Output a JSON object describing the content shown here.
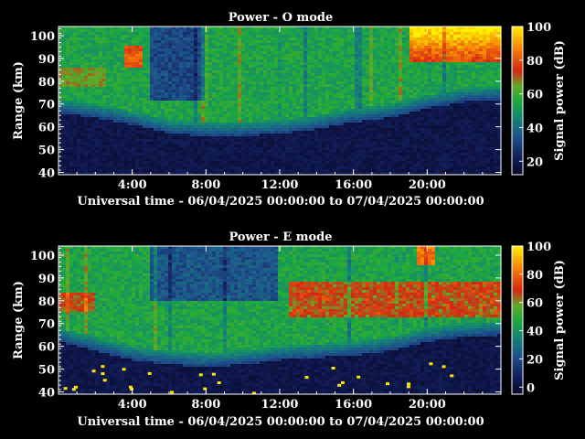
{
  "chart_data": [
    {
      "type": "heatmap",
      "title": "Power - O mode",
      "xlabel": "Universal time - 06/04/2025 00:00:00 to 07/04/2025 00:00:00",
      "ylabel": "Range (km)",
      "xlim": [
        0,
        24
      ],
      "x_tick_labels": [
        "4:00",
        "8:00",
        "12:00",
        "16:00",
        "20:00"
      ],
      "x_ticks": [
        4,
        8,
        12,
        16,
        20
      ],
      "ylim": [
        39,
        104
      ],
      "y_ticks": [
        40,
        50,
        60,
        70,
        80,
        90,
        100
      ],
      "colorbar": {
        "label": "Signal power (dB)",
        "range": [
          12,
          100
        ],
        "ticks": [
          20,
          40,
          60,
          80,
          100
        ]
      },
      "features": {
        "echo_lower_boundary_km": [
          [
            0,
            70
          ],
          [
            2,
            68
          ],
          [
            4,
            65
          ],
          [
            6,
            61
          ],
          [
            8,
            60
          ],
          [
            10,
            60
          ],
          [
            12,
            61
          ],
          [
            14,
            63
          ],
          [
            16,
            66
          ],
          [
            18,
            68
          ],
          [
            20,
            72
          ],
          [
            22,
            75
          ],
          [
            24,
            76
          ]
        ],
        "strong_echo_region": "above ~90 km after 20:00 and near 4:00",
        "noise_floor_db": 12
      }
    },
    {
      "type": "heatmap",
      "title": "Power - E mode",
      "xlabel": "Universal time - 06/04/2025 00:00:00 to 07/04/2025 00:00:00",
      "ylabel": "Range (km)",
      "xlim": [
        0,
        24
      ],
      "x_tick_labels": [
        "4:00",
        "8:00",
        "12:00",
        "16:00",
        "20:00"
      ],
      "x_ticks": [
        4,
        8,
        12,
        16,
        20
      ],
      "ylim": [
        39,
        104
      ],
      "y_ticks": [
        40,
        50,
        60,
        70,
        80,
        90,
        100
      ],
      "colorbar": {
        "label": "Signal power (dB)",
        "range": [
          -5,
          100
        ],
        "ticks": [
          0,
          20,
          40,
          60,
          80,
          100
        ]
      },
      "features": {
        "echo_lower_boundary_km": [
          [
            0,
            66
          ],
          [
            2,
            62
          ],
          [
            4,
            58
          ],
          [
            6,
            56
          ],
          [
            8,
            55
          ],
          [
            10,
            56
          ],
          [
            12,
            58
          ],
          [
            14,
            59
          ],
          [
            16,
            60
          ],
          [
            18,
            62
          ],
          [
            20,
            66
          ],
          [
            22,
            68
          ],
          [
            24,
            69
          ]
        ],
        "strong_echo_region": "75-85 km from ~13:00 to 24:00",
        "noise_floor_db": 0
      }
    }
  ]
}
